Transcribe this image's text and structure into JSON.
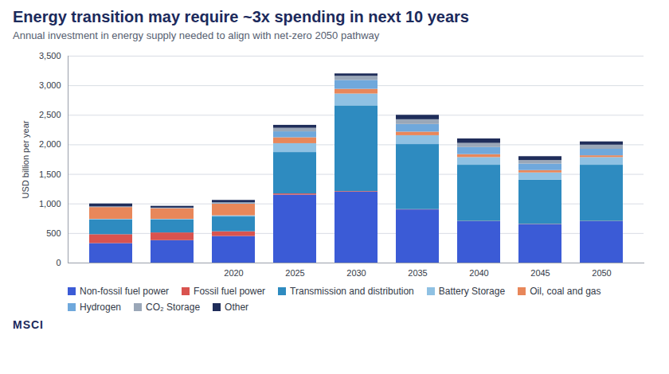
{
  "chart_data": {
    "type": "bar",
    "title": "Energy transition may require ~3x spending in next 10 years",
    "subtitle": "Annual investment in energy supply needed to align with net-zero 2050 pathway",
    "y_label": "USD billion per year",
    "annotations": [
      "MSCI"
    ],
    "categories": [
      null,
      null,
      "2020",
      "2025",
      "2030",
      "2035",
      "2040",
      "2045",
      "2050"
    ],
    "series": [
      {
        "name": "Non-fossil fuel power",
        "color": "#3b5bd6",
        "values": [
          330,
          380,
          450,
          1150,
          1200,
          900,
          700,
          650,
          700
        ]
      },
      {
        "name": "Fossil fuel power",
        "color": "#d9534f",
        "values": [
          150,
          130,
          80,
          20,
          10,
          5,
          5,
          5,
          5
        ]
      },
      {
        "name": "Transmission and distribution",
        "color": "#2e8bc0",
        "values": [
          250,
          220,
          250,
          700,
          1450,
          1100,
          950,
          750,
          950
        ]
      },
      {
        "name": "Battery Storage",
        "color": "#8fc1e3",
        "values": [
          10,
          10,
          20,
          150,
          200,
          150,
          130,
          120,
          130
        ]
      },
      {
        "name": "Oil, coal and gas",
        "color": "#e8875a",
        "values": [
          200,
          180,
          200,
          100,
          80,
          60,
          50,
          40,
          30
        ]
      },
      {
        "name": "Hydrogen",
        "color": "#6fa8dc",
        "values": [
          5,
          5,
          10,
          100,
          150,
          130,
          120,
          110,
          110
        ]
      },
      {
        "name": "CO₂ Storage",
        "color": "#9aa7b8",
        "values": [
          5,
          5,
          10,
          60,
          70,
          80,
          70,
          60,
          70
        ]
      },
      {
        "name": "Other",
        "color": "#1f2d5a",
        "values": [
          50,
          30,
          40,
          50,
          40,
          75,
          75,
          65,
          55
        ]
      }
    ],
    "ylim": [
      0,
      3500
    ],
    "yticks": [
      0,
      500,
      {
        "value": 1000,
        "label": "1,000"
      },
      {
        "value": 1500,
        "label": "1,500"
      },
      {
        "value": 2000,
        "label": "2,000"
      },
      {
        "value": 2500,
        "label": "2,500"
      },
      {
        "value": 3000,
        "label": "3,000"
      },
      {
        "value": 3500,
        "label": "3,500"
      }
    ],
    "stacked": true,
    "grid": true,
    "legend": "bottom"
  }
}
